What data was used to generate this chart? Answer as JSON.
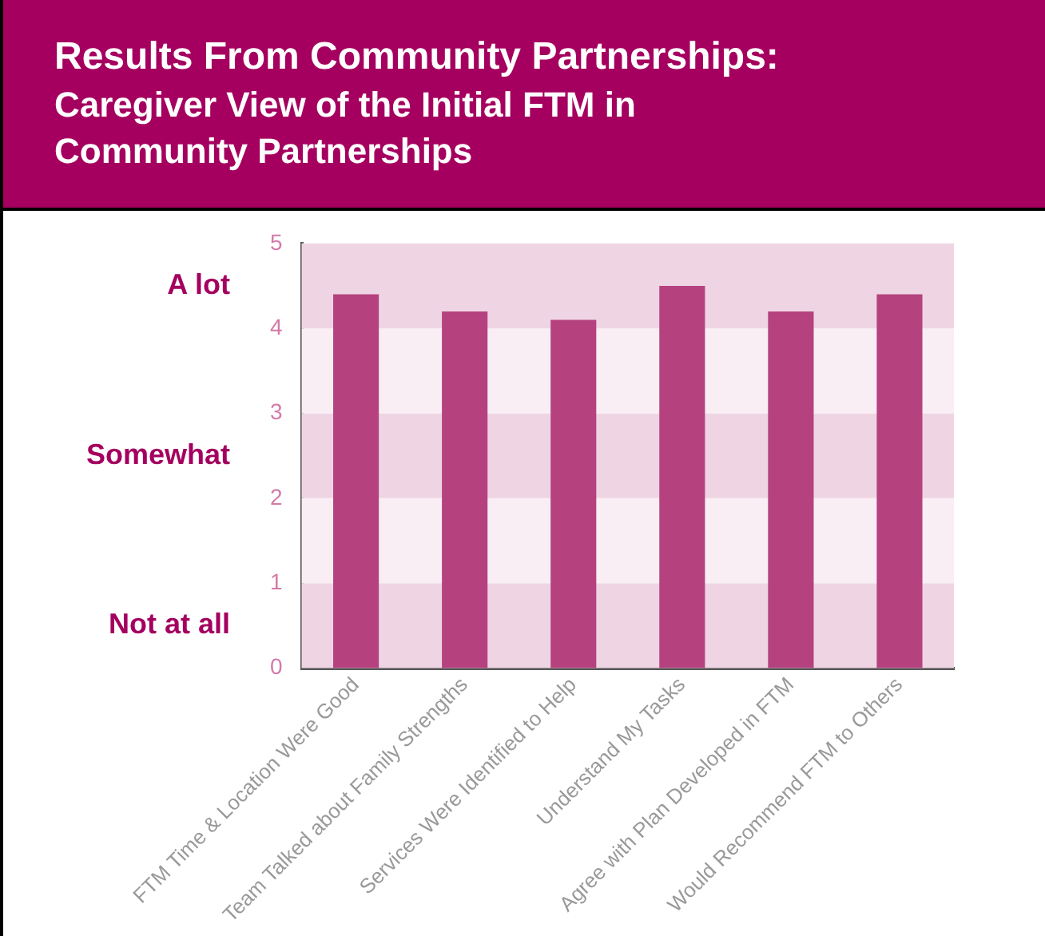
{
  "chart_data": {
    "type": "bar",
    "title": "Results From Community Partnerships:",
    "subtitle": "Caregiver View of the Initial FTM in Community Partnerships",
    "categories": [
      "FTM Time & Location Were Good",
      "Team Talked about Family Strengths",
      "Services Were Identified to Help",
      "Understand My Tasks",
      "Agree with Plan Developed in FTM",
      "Would Recommend FTM to Others"
    ],
    "values": [
      4.4,
      4.2,
      4.1,
      4.5,
      4.2,
      4.4
    ],
    "color": "#b5427f",
    "ylim": [
      0,
      5
    ],
    "yticks": [
      0,
      1,
      2,
      3,
      4,
      5
    ],
    "grid": false,
    "legend": false,
    "bands": [
      {
        "axis": "y",
        "from": 0,
        "to": 1,
        "color": "#efd5e3"
      },
      {
        "axis": "y",
        "from": 1,
        "to": 2,
        "color": "#f8eef4"
      },
      {
        "axis": "y",
        "from": 2,
        "to": 3,
        "color": "#efd5e3"
      },
      {
        "axis": "y",
        "from": 3,
        "to": 4,
        "color": "#f8eef4"
      },
      {
        "axis": "y",
        "from": 4,
        "to": 5,
        "color": "#efd5e3"
      }
    ],
    "annotations": [
      "A lot",
      "Somewhat",
      "Not at all"
    ]
  }
}
